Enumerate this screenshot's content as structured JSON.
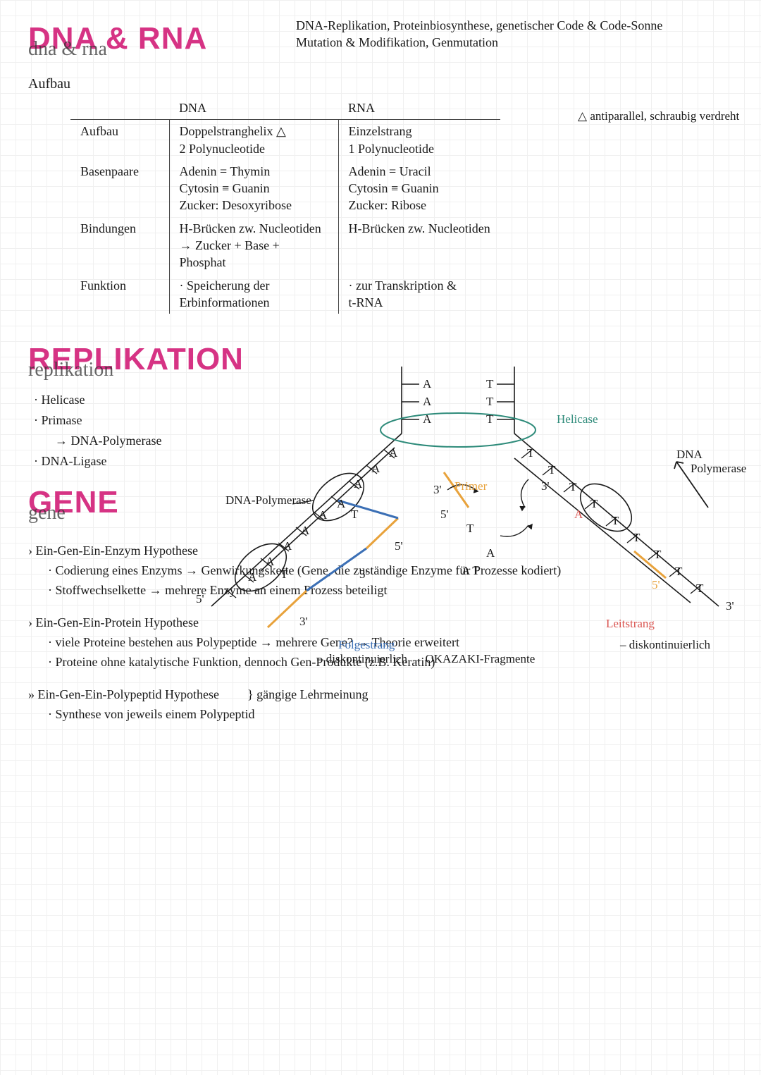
{
  "colors": {
    "accent_pink": "#d63384",
    "ink": "#1a1a1a",
    "grid": "#f0f0f0",
    "helicase_green": "#2e8b7a",
    "primer_orange": "#e8a23b",
    "leitstrang_red": "#d9534f",
    "folgestrang_blue": "#3b6fb5"
  },
  "header": {
    "title_main": "DNA & RNA",
    "title_script": "dna & rna",
    "topnote_line1": "DNA-Replikation, Proteinbiosynthese, genetischer Code & Code-Sonne",
    "topnote_line2": "Mutation & Modifikation, Genmutation"
  },
  "aufbau": {
    "label": "Aufbau",
    "sidenote": "antiparallel, schraubig verdreht",
    "sidenote_marker": "△",
    "table": {
      "columns": [
        "",
        "DNA",
        "RNA"
      ],
      "rows": [
        {
          "label": "Aufbau",
          "dna": "Doppelstranghelix △\n2 Polynucleotide",
          "rna": "Einzelstrang\n1 Polynucleotide"
        },
        {
          "label": "Basenpaare",
          "dna": "Adenin = Thymin\nCytosin ≡ Guanin\nZucker: Desoxyribose",
          "rna": "Adenin = Uracil\nCytosin ≡ Guanin\nZucker: Ribose"
        },
        {
          "label": "Bindungen",
          "dna": "H-Brücken zw. Nucleotiden\n→ Zucker + Base + Phosphat",
          "rna": "H-Brücken zw. Nucleotiden"
        },
        {
          "label": "Funktion",
          "dna": "· Speicherung der\n  Erbinformationen",
          "rna": "· zur Transkription &\n  t-RNA"
        }
      ]
    }
  },
  "replikation": {
    "title_main": "REPLIKATION",
    "title_script": "replikation",
    "enzymes": [
      "Helicase",
      "Primase",
      "→ DNA-Polymerase",
      "DNA-Ligase"
    ],
    "diagram": {
      "labels": {
        "helicase": "Helicase",
        "dna_polymerase_right": "DNA Polymerase",
        "dna_polymerase_left": "DNA-Polymerase",
        "primer": "Primer",
        "leitstrang": "Leitstrang",
        "folgestrang": "Folgestrang",
        "folgestrang_note": "– diskontinuierlich → OKAZAKI-Fragmente",
        "leitstrang_note": "– diskontinuierlich",
        "five_prime": "5'",
        "three_prime": "3'",
        "base_A": "A",
        "base_T": "T"
      },
      "styling": {
        "strand_color": "#1a1a1a",
        "strand_width": 1.6,
        "helicase_ellipse_color": "#2e8b7a",
        "polymerase_ellipse_color": "#1a1a1a",
        "primer_color": "#e8a23b",
        "leit_color": "#d9534f",
        "folge_color": "#3b6fb5",
        "base_font_size": 15
      }
    }
  },
  "gene": {
    "title_main": "GENE",
    "title_script": "gene",
    "hypotheses": [
      {
        "head": "Ein-Gen-Ein-Enzym Hypothese",
        "lines": [
          "Codierung eines Enzyms → Genwirkungskette (Gene, die zuständige Enzyme für Prozesse kodiert)",
          "Stoffwechselkette → mehrere Enzyme an einem Prozess beteiligt"
        ]
      },
      {
        "head": "Ein-Gen-Ein-Protein Hypothese",
        "lines": [
          "viele Proteine bestehen aus Polypeptide → mehrere Gene? → Theorie erweitert",
          "Proteine ohne katalytische Funktion, dennoch Gen-Produkte (z.B. Keratin)"
        ]
      },
      {
        "head": "Ein-Gen-Ein-Polypeptid Hypothese",
        "brace_note": "gängige Lehrmeinung",
        "lines": [
          "Synthese von jeweils einem Polypeptid"
        ]
      }
    ]
  }
}
